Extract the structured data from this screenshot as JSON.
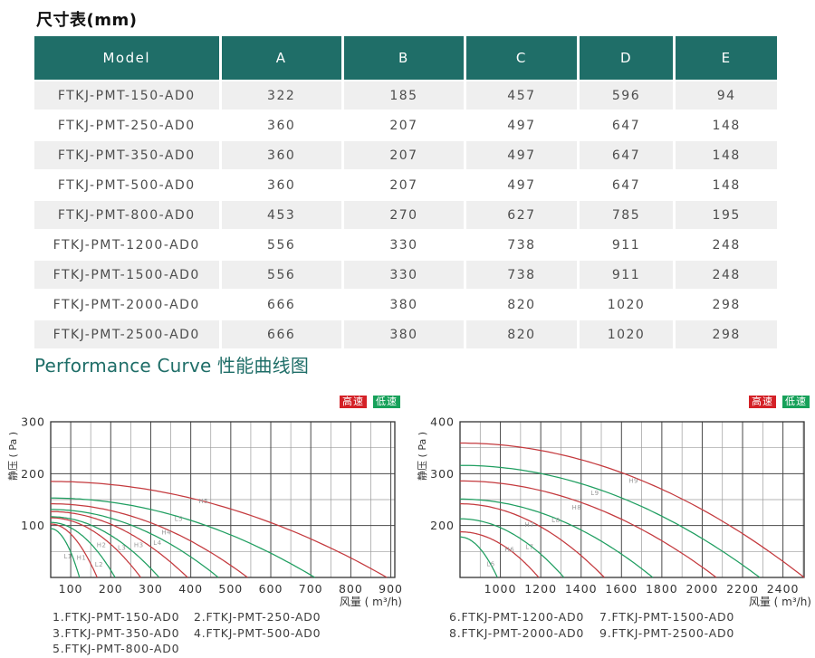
{
  "dim_table": {
    "title": "尺寸表(mm)",
    "headers": [
      "Model",
      "A",
      "B",
      "C",
      "D",
      "E"
    ],
    "rows": [
      [
        "FTKJ-PMT-150-AD0",
        "322",
        "185",
        "457",
        "596",
        "94"
      ],
      [
        "FTKJ-PMT-250-AD0",
        "360",
        "207",
        "497",
        "647",
        "148"
      ],
      [
        "FTKJ-PMT-350-AD0",
        "360",
        "207",
        "497",
        "647",
        "148"
      ],
      [
        "FTKJ-PMT-500-AD0",
        "360",
        "207",
        "497",
        "647",
        "148"
      ],
      [
        "FTKJ-PMT-800-AD0",
        "453",
        "270",
        "627",
        "785",
        "195"
      ],
      [
        "FTKJ-PMT-1200-AD0",
        "556",
        "330",
        "738",
        "911",
        "248"
      ],
      [
        "FTKJ-PMT-1500-AD0",
        "556",
        "330",
        "738",
        "911",
        "248"
      ],
      [
        "FTKJ-PMT-2000-AD0",
        "666",
        "380",
        "820",
        "1020",
        "298"
      ],
      [
        "FTKJ-PMT-2500-AD0",
        "666",
        "380",
        "820",
        "1020",
        "298"
      ]
    ]
  },
  "performance": {
    "title": "Performance Curve 性能曲线图",
    "speed_legend": {
      "high": {
        "label": "高速",
        "color": "#d42127"
      },
      "low": {
        "label": "低速",
        "color": "#17a15a"
      }
    }
  },
  "colors": {
    "teal": "#1f6e68",
    "curve_high": "#c43a3e",
    "curve_low": "#1f9e60",
    "chip_high": "#d42127",
    "chip_low": "#17a15a",
    "row_alt": "#efefef",
    "grid_minor": "#9a9a9a",
    "grid_major": "#4a4a4a",
    "plot_border": "#333333",
    "axis_text": "#333333",
    "curve_label_text": "#999999"
  },
  "chart_data": [
    {
      "type": "line",
      "xlabel": "风量 ( m³/h)",
      "ylabel": "静压 ( Pa )",
      "x_min": 50,
      "x_max": 910,
      "x_ticks": [
        100,
        200,
        300,
        400,
        500,
        600,
        700,
        800,
        900
      ],
      "x_grid_step": 50,
      "y_min": 0,
      "y_max": 300,
      "y_ticks": [
        100,
        200,
        300
      ],
      "y_grid_step": 50,
      "curve_note": "fan curves: static pressure P (Pa) vs air flow Q (m3/h); P = p_end + (p_start - p_end) * (1 - t^2), t = (Q - x_min)/(q_end - x_min); H = high speed (red), L = low speed (green)",
      "series": [
        {
          "name": "L1",
          "speed": "low",
          "p_start": 94,
          "q_end": 122,
          "label": {
            "q": 93,
            "p": 37
          }
        },
        {
          "name": "H1",
          "speed": "high",
          "p_start": 103,
          "q_end": 166,
          "label": {
            "q": 127,
            "p": 34
          }
        },
        {
          "name": "L2",
          "speed": "low",
          "p_start": 106,
          "q_end": 211,
          "label": {
            "q": 171,
            "p": 21
          }
        },
        {
          "name": "H2",
          "speed": "high",
          "p_start": 115,
          "q_end": 275,
          "label": {
            "q": 177,
            "p": 58
          }
        },
        {
          "name": "L3",
          "speed": "low",
          "p_start": 117,
          "q_end": 321,
          "label": {
            "q": 228,
            "p": 53
          }
        },
        {
          "name": "H3",
          "speed": "high",
          "p_start": 127,
          "q_end": 392,
          "label": {
            "q": 270,
            "p": 58
          }
        },
        {
          "name": "L4",
          "speed": "low",
          "p_start": 131,
          "q_end": 469,
          "label": {
            "q": 317,
            "p": 63
          }
        },
        {
          "name": "H4",
          "speed": "high",
          "p_start": 142,
          "q_end": 542,
          "label": {
            "q": 339,
            "p": 83
          }
        },
        {
          "name": "L5",
          "speed": "low",
          "p_start": 153,
          "q_end": 710,
          "label": {
            "q": 370,
            "p": 109
          }
        },
        {
          "name": "H5",
          "speed": "high",
          "p_start": 185,
          "q_end": 890,
          "label": {
            "q": 432,
            "p": 143
          }
        }
      ],
      "models": [
        "1.FTKJ-PMT-150-AD0",
        "2.FTKJ-PMT-250-AD0",
        "3.FTKJ-PMT-350-AD0",
        "4.FTKJ-PMT-500-AD0",
        "5.FTKJ-PMT-800-AD0"
      ]
    },
    {
      "type": "line",
      "xlabel": "风量 ( m³/h)",
      "ylabel": "静压 ( Pa )",
      "x_min": 800,
      "x_max": 2505,
      "x_ticks": [
        1000,
        1200,
        1400,
        1600,
        1800,
        2000,
        2200,
        2400
      ],
      "x_grid_step": 100,
      "y_min": 100,
      "y_max": 400,
      "y_ticks": [
        200,
        300,
        400
      ],
      "y_grid_step": 50,
      "curve_note": "fan curves: static pressure P (Pa) vs air flow Q (m3/h); P = p_end + (p_start - p_end) * (1 - t^2), t = (Q - x_min)/(q_end - x_min); H = high speed (red), L = low speed (green)",
      "series": [
        {
          "name": "L6",
          "speed": "low",
          "p_start": 178,
          "q_end": 985,
          "label": {
            "q": 952,
            "p": 122
          }
        },
        {
          "name": "H6",
          "speed": "high",
          "p_start": 188,
          "q_end": 1190,
          "label": {
            "q": 1046,
            "p": 150
          }
        },
        {
          "name": "L7",
          "speed": "low",
          "p_start": 213,
          "q_end": 1315,
          "label": {
            "q": 1145,
            "p": 155
          }
        },
        {
          "name": "H7",
          "speed": "high",
          "p_start": 242,
          "q_end": 1515,
          "label": {
            "q": 1145,
            "p": 198
          }
        },
        {
          "name": "L8",
          "speed": "low",
          "p_start": 251,
          "q_end": 1755,
          "label": {
            "q": 1275,
            "p": 206
          }
        },
        {
          "name": "H8",
          "speed": "high",
          "p_start": 286,
          "q_end": 2070,
          "label": {
            "q": 1378,
            "p": 231
          }
        },
        {
          "name": "L9",
          "speed": "low",
          "p_start": 316,
          "q_end": 2285,
          "label": {
            "q": 1468,
            "p": 259
          }
        },
        {
          "name": "H9",
          "speed": "high",
          "p_start": 359,
          "q_end": 2505,
          "label": {
            "q": 1660,
            "p": 282
          }
        }
      ],
      "models": [
        "6.FTKJ-PMT-1200-AD0",
        "7.FTKJ-PMT-1500-AD0",
        "8.FTKJ-PMT-2000-AD0",
        "9.FTKJ-PMT-2500-AD0"
      ]
    }
  ]
}
